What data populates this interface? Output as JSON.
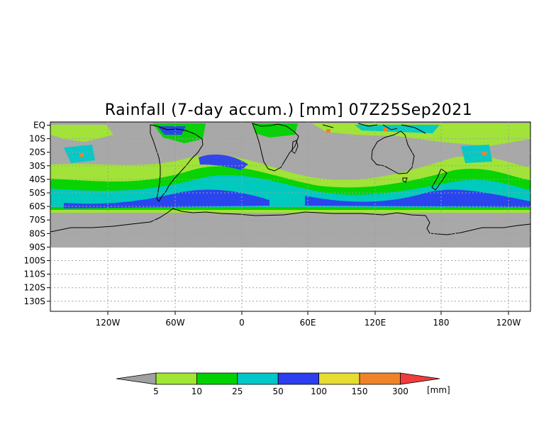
{
  "title": "Rainfall (7-day accum.) [mm] 07Z25Sep2021",
  "lat_labels": [
    "EQ",
    "10S",
    "20S",
    "30S",
    "40S",
    "50S",
    "60S",
    "70S",
    "80S",
    "90S",
    "100S",
    "110S",
    "120S",
    "130S"
  ],
  "lon_labels": [
    "120W",
    "60W",
    "0",
    "60E",
    "120E",
    "180",
    "120W"
  ],
  "colorbar": {
    "unit": "[mm]",
    "labels": [
      "5",
      "10",
      "25",
      "50",
      "100",
      "150",
      "300"
    ],
    "colors": [
      "#a0a0a0",
      "#a0e632",
      "#00d200",
      "#00c8c8",
      "#2c3ef0",
      "#e6dc32",
      "#f08228",
      "#f03c3c"
    ]
  },
  "colors": {
    "no_rain": "#a8a8a8",
    "land_outline": "#000000",
    "grid": "#a0a0a0",
    "empty_area": "#ffffff"
  }
}
